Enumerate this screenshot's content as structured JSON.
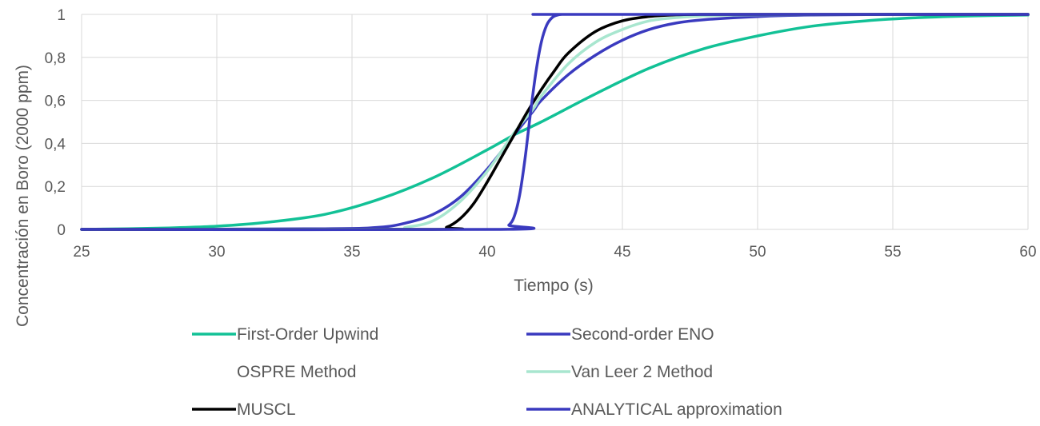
{
  "chart_data": {
    "type": "line",
    "title": "",
    "xlabel": "Tiempo (s)",
    "ylabel": "Concentración en Boro (2000 ppm)",
    "xlim": [
      25,
      60
    ],
    "ylim": [
      0,
      1
    ],
    "x_ticks": [
      25,
      30,
      35,
      40,
      45,
      50,
      55,
      60
    ],
    "y_ticks": [
      0,
      0.2,
      0.4,
      0.6,
      0.8,
      1
    ],
    "y_tick_labels": [
      "0",
      "0,2",
      "0,4",
      "0,6",
      "0,8",
      "1"
    ],
    "grid": true,
    "legend_position": "bottom",
    "series": [
      {
        "name": "First-Order Upwind",
        "color": "#12c196",
        "x": [
          25,
          28,
          30,
          32,
          34,
          36,
          38,
          40,
          41,
          42,
          44,
          46,
          48,
          50,
          52,
          54,
          56,
          58,
          60
        ],
        "y": [
          0.0,
          0.006,
          0.015,
          0.035,
          0.07,
          0.14,
          0.24,
          0.37,
          0.44,
          0.5,
          0.63,
          0.75,
          0.84,
          0.9,
          0.945,
          0.97,
          0.985,
          0.993,
          0.997
        ]
      },
      {
        "name": "Second-order ENO",
        "color": "#3a3abf",
        "x": [
          25,
          34,
          36,
          37,
          38,
          39,
          40,
          41,
          41.7,
          42,
          43,
          44,
          45,
          46,
          47,
          48,
          50,
          52,
          55,
          60
        ],
        "y": [
          0.0,
          0.003,
          0.01,
          0.03,
          0.07,
          0.15,
          0.28,
          0.44,
          0.55,
          0.6,
          0.72,
          0.81,
          0.88,
          0.93,
          0.96,
          0.975,
          0.99,
          0.997,
          1.0,
          1.0
        ]
      },
      {
        "name": "OSPRE Method",
        "color": "#ffffff",
        "x": [],
        "y": []
      },
      {
        "name": "Van Leer 2 Method",
        "color": "#a8e6cf",
        "x": [
          25,
          36,
          37,
          38,
          39,
          40,
          41,
          41.7,
          42,
          43,
          44,
          45,
          46,
          47,
          48,
          50,
          55,
          60
        ],
        "y": [
          0.0,
          0.001,
          0.01,
          0.04,
          0.13,
          0.27,
          0.45,
          0.56,
          0.62,
          0.77,
          0.87,
          0.93,
          0.97,
          0.985,
          0.993,
          0.998,
          1.0,
          1.0
        ]
      },
      {
        "name": "MUSCL",
        "color": "#000000",
        "x": [
          25,
          38,
          38.5,
          39,
          39.5,
          40,
          40.5,
          41,
          41.5,
          42,
          42.5,
          43,
          44,
          45,
          46,
          47,
          48,
          50,
          60
        ],
        "y": [
          0.0,
          0.0,
          0.01,
          0.05,
          0.12,
          0.22,
          0.33,
          0.44,
          0.55,
          0.65,
          0.74,
          0.82,
          0.92,
          0.97,
          0.99,
          0.998,
          1.0,
          1.0,
          1.0
        ]
      },
      {
        "name": "ANALYTICAL approximation",
        "color": "#3a3abf",
        "x": [
          25,
          40.5,
          40.8,
          41,
          41.2,
          41.4,
          41.6,
          41.8,
          42,
          42.2,
          42.4,
          42.6,
          42.8,
          43,
          60
        ],
        "y": [
          0.0,
          0.0,
          0.02,
          0.06,
          0.16,
          0.33,
          0.54,
          0.73,
          0.87,
          0.95,
          0.985,
          0.997,
          1.0,
          1.0,
          1.0
        ]
      }
    ]
  }
}
